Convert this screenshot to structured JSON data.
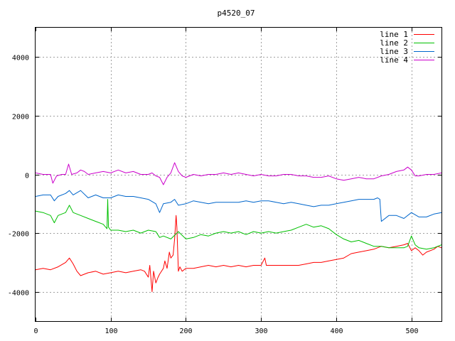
{
  "chart_data": {
    "type": "line",
    "title": "p4520_07",
    "xlabel": "",
    "ylabel": "",
    "xlim": [
      0,
      540
    ],
    "ylim": [
      -5000,
      5000
    ],
    "x_ticks": [
      0,
      100,
      200,
      300,
      400,
      500
    ],
    "y_ticks": [
      -4000,
      -2000,
      0,
      2000,
      4000
    ],
    "grid": true,
    "legend_position": "top-right",
    "series": [
      {
        "name": "line 1",
        "color": "#ff0000",
        "x": [
          0,
          10,
          20,
          30,
          40,
          45,
          50,
          55,
          60,
          70,
          80,
          90,
          100,
          110,
          120,
          130,
          140,
          145,
          150,
          152,
          155,
          157,
          160,
          163,
          165,
          170,
          172,
          175,
          178,
          180,
          183,
          185,
          187,
          188,
          190,
          192,
          195,
          200,
          210,
          220,
          230,
          240,
          250,
          260,
          270,
          280,
          290,
          300,
          305,
          307,
          310,
          320,
          330,
          340,
          350,
          360,
          370,
          380,
          390,
          400,
          410,
          420,
          430,
          440,
          450,
          460,
          470,
          480,
          490,
          495,
          500,
          505,
          510,
          515,
          520,
          530,
          535,
          540
        ],
        "y": [
          -3250,
          -3200,
          -3250,
          -3150,
          -3000,
          -2850,
          -3050,
          -3300,
          -3450,
          -3350,
          -3300,
          -3400,
          -3350,
          -3300,
          -3350,
          -3300,
          -3250,
          -3300,
          -3500,
          -3100,
          -4000,
          -3300,
          -3700,
          -3500,
          -3400,
          -3200,
          -2950,
          -3200,
          -2650,
          -2850,
          -2750,
          -2200,
          -1400,
          -1800,
          -3300,
          -3150,
          -3300,
          -3200,
          -3200,
          -3150,
          -3100,
          -3150,
          -3100,
          -3150,
          -3100,
          -3150,
          -3100,
          -3100,
          -2850,
          -3100,
          -3100,
          -3100,
          -3100,
          -3100,
          -3100,
          -3050,
          -3000,
          -3000,
          -2950,
          -2900,
          -2850,
          -2700,
          -2650,
          -2600,
          -2550,
          -2450,
          -2500,
          -2450,
          -2400,
          -2350,
          -2600,
          -2500,
          -2600,
          -2750,
          -2650,
          -2550,
          -2450,
          -2500
        ]
      },
      {
        "name": "line 2",
        "color": "#00c000",
        "x": [
          0,
          10,
          20,
          25,
          30,
          40,
          45,
          50,
          60,
          70,
          80,
          90,
          95,
          96,
          97,
          100,
          110,
          120,
          130,
          140,
          150,
          160,
          165,
          170,
          180,
          190,
          200,
          210,
          220,
          230,
          240,
          250,
          260,
          270,
          280,
          290,
          300,
          310,
          320,
          330,
          340,
          350,
          360,
          370,
          380,
          390,
          400,
          410,
          420,
          430,
          440,
          450,
          460,
          470,
          480,
          490,
          495,
          500,
          505,
          510,
          520,
          530,
          540
        ],
        "y": [
          -1250,
          -1300,
          -1400,
          -1650,
          -1400,
          -1300,
          -1050,
          -1300,
          -1400,
          -1500,
          -1600,
          -1700,
          -1850,
          -850,
          -1800,
          -1900,
          -1900,
          -1950,
          -1900,
          -2000,
          -1900,
          -1950,
          -2150,
          -2100,
          -2200,
          -1950,
          -2200,
          -2150,
          -2050,
          -2100,
          -2000,
          -1950,
          -2000,
          -1950,
          -2050,
          -1950,
          -2000,
          -1950,
          -2000,
          -1950,
          -1900,
          -1800,
          -1700,
          -1800,
          -1750,
          -1850,
          -2050,
          -2200,
          -2300,
          -2250,
          -2350,
          -2450,
          -2450,
          -2500,
          -2500,
          -2500,
          -2450,
          -2100,
          -2400,
          -2500,
          -2550,
          -2500,
          -2400
        ]
      },
      {
        "name": "line 3",
        "color": "#0066cc",
        "x": [
          0,
          10,
          20,
          25,
          30,
          40,
          45,
          50,
          60,
          70,
          80,
          90,
          100,
          110,
          120,
          130,
          140,
          150,
          160,
          165,
          170,
          180,
          185,
          190,
          200,
          210,
          220,
          230,
          240,
          250,
          260,
          270,
          280,
          290,
          300,
          310,
          320,
          330,
          340,
          350,
          360,
          370,
          380,
          390,
          400,
          410,
          420,
          430,
          440,
          450,
          455,
          458,
          460,
          470,
          480,
          490,
          500,
          510,
          520,
          530,
          540
        ],
        "y": [
          -750,
          -700,
          -700,
          -900,
          -750,
          -650,
          -550,
          -700,
          -550,
          -800,
          -700,
          -800,
          -800,
          -700,
          -750,
          -750,
          -800,
          -850,
          -1000,
          -1300,
          -1000,
          -950,
          -850,
          -1050,
          -1000,
          -900,
          -950,
          -1000,
          -950,
          -950,
          -950,
          -950,
          -900,
          -950,
          -900,
          -900,
          -950,
          -1000,
          -950,
          -1000,
          -1050,
          -1100,
          -1050,
          -1050,
          -1000,
          -950,
          -900,
          -850,
          -850,
          -850,
          -800,
          -850,
          -1600,
          -1400,
          -1400,
          -1500,
          -1300,
          -1450,
          -1450,
          -1350,
          -1300
        ]
      },
      {
        "name": "line 4",
        "color": "#cc00cc",
        "x": [
          0,
          10,
          20,
          23,
          28,
          35,
          40,
          44,
          48,
          55,
          60,
          65,
          70,
          80,
          90,
          100,
          110,
          120,
          130,
          140,
          150,
          155,
          160,
          165,
          170,
          175,
          180,
          185,
          190,
          195,
          200,
          210,
          220,
          230,
          240,
          250,
          260,
          270,
          280,
          290,
          300,
          310,
          320,
          330,
          340,
          350,
          360,
          370,
          380,
          390,
          400,
          410,
          420,
          430,
          440,
          450,
          460,
          470,
          480,
          490,
          495,
          500,
          505,
          510,
          520,
          530,
          540
        ],
        "y": [
          50,
          0,
          0,
          -300,
          -50,
          0,
          0,
          350,
          0,
          50,
          150,
          100,
          0,
          50,
          100,
          50,
          150,
          50,
          100,
          0,
          0,
          50,
          -50,
          -100,
          -350,
          -100,
          50,
          400,
          100,
          -50,
          -100,
          0,
          -50,
          0,
          0,
          50,
          0,
          50,
          0,
          -50,
          0,
          -50,
          -50,
          0,
          0,
          -50,
          -50,
          -100,
          -100,
          -50,
          -150,
          -200,
          -150,
          -100,
          -150,
          -150,
          -50,
          0,
          100,
          150,
          250,
          150,
          -50,
          -50,
          0,
          0,
          50
        ]
      }
    ]
  }
}
